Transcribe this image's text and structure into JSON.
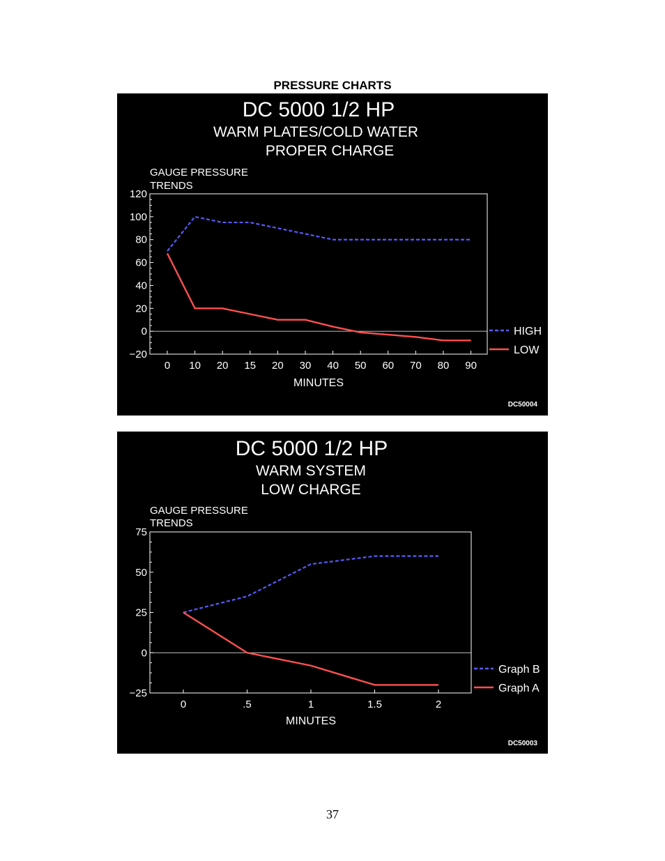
{
  "page_heading": "PRESSURE CHARTS",
  "page_number": "37",
  "colors": {
    "high": "#5a5aff",
    "low": "#ff5050",
    "background": "#000000",
    "text": "#ffffff"
  },
  "chart_data": [
    {
      "type": "line",
      "title": "DC 5000 1/2 HP",
      "subtitle_lines": [
        "WARM PLATES/COLD WATER",
        "PROPER CHARGE"
      ],
      "ylabel_lines": [
        "GAUGE PRESSURE",
        "TRENDS"
      ],
      "xlabel": "MINUTES",
      "categories": [
        "0",
        "10",
        "20",
        "15",
        "20",
        "30",
        "40",
        "50",
        "60",
        "70",
        "80",
        "90"
      ],
      "yticks": [
        "120",
        "100",
        "80",
        "60",
        "40",
        "20",
        "0",
        "−20"
      ],
      "ylim": [
        -20,
        120
      ],
      "series": [
        {
          "name": "HIGH",
          "style": "dashed",
          "color": "#5a5aff",
          "values": [
            70,
            100,
            95,
            95,
            90,
            85,
            80,
            80,
            80,
            80,
            80,
            80
          ]
        },
        {
          "name": "LOW",
          "style": "solid",
          "color": "#ff5050",
          "values": [
            68,
            20,
            20,
            15,
            10,
            10,
            4,
            -1,
            -3,
            -5,
            -8,
            -8
          ]
        }
      ],
      "legend": "right",
      "code": "DC50004"
    },
    {
      "type": "line",
      "title": "DC 5000 1/2 HP",
      "subtitle_lines": [
        "WARM SYSTEM",
        "LOW CHARGE"
      ],
      "ylabel_lines": [
        "GAUGE PRESSURE",
        "TRENDS"
      ],
      "xlabel": "MINUTES",
      "categories": [
        "0",
        ".5",
        "1",
        "1.5",
        "2"
      ],
      "yticks": [
        "75",
        "50",
        "25",
        "0",
        "−25"
      ],
      "ylim": [
        -25,
        75
      ],
      "series": [
        {
          "name": "Graph B",
          "style": "dashed",
          "color": "#5a5aff",
          "x": [
            0,
            0.5,
            1,
            1.5,
            2
          ],
          "values": [
            25,
            35,
            55,
            60,
            60
          ]
        },
        {
          "name": "Graph A",
          "style": "solid",
          "color": "#ff5050",
          "x": [
            0,
            0.5,
            1,
            1.5,
            2
          ],
          "values": [
            25,
            0,
            -8,
            -20,
            -20
          ]
        }
      ],
      "legend": "right",
      "code": "DC50003"
    }
  ]
}
